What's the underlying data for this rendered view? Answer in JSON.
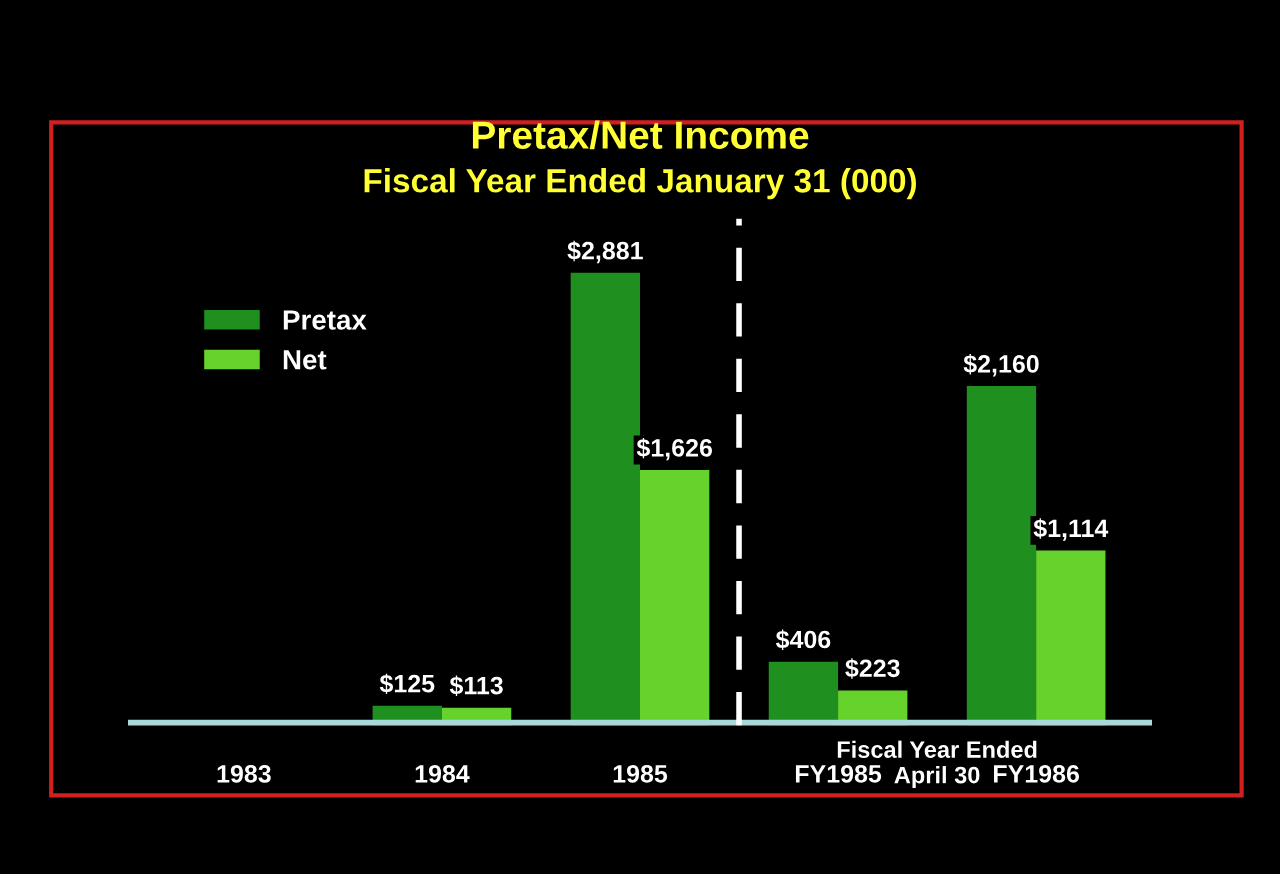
{
  "chart_data": {
    "type": "bar",
    "title": "Pretax/Net Income",
    "subtitle": "Fiscal Year Ended January 31 (000)",
    "categories": [
      "1983",
      "1984",
      "1985",
      "FY1985",
      "FY1986"
    ],
    "series": [
      {
        "name": "Pretax",
        "color": "#1f8f1f",
        "values": [
          0,
          125,
          2881,
          406,
          2160
        ],
        "value_labels": [
          null,
          "$125",
          "$2,881",
          "$406",
          "$2,160"
        ]
      },
      {
        "name": "Net",
        "color": "#66d22c",
        "values": [
          0,
          113,
          1626,
          223,
          1114
        ],
        "value_labels": [
          null,
          "$113",
          "$1,626",
          "$223",
          "$1,114"
        ]
      }
    ],
    "annotations": [
      "Fiscal Year Ended\nApril 30"
    ],
    "legend": "top left",
    "grid": false
  }
}
